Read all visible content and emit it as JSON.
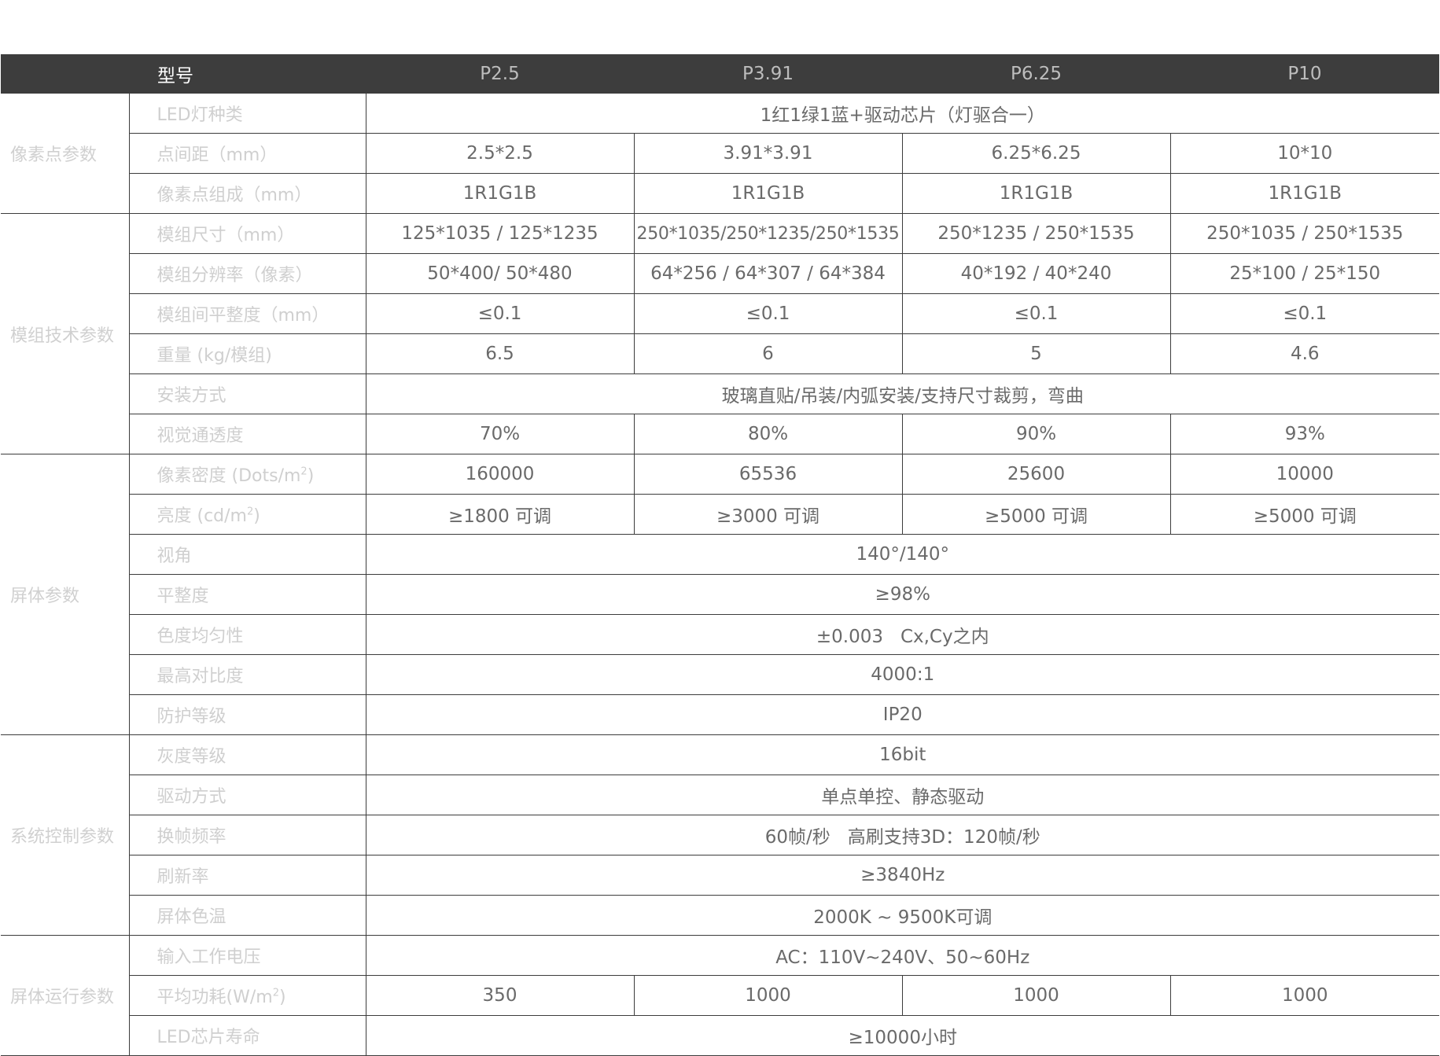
{
  "header": {
    "model_label": "型号",
    "models": [
      "P2.5",
      "P3.91",
      "P6.25",
      "P10"
    ]
  },
  "groups": {
    "pixel": "像素点参数",
    "module": "模组技术参数",
    "screen": "屏体参数",
    "system": "系统控制参数",
    "operation": "屏体运行参数"
  },
  "rows": {
    "led_type": {
      "label": "LED灯种类",
      "value": "1红1绿1蓝+驱动芯片（灯驱合一）"
    },
    "pitch": {
      "label": "点间距（mm）",
      "values": [
        "2.5*2.5",
        "3.91*3.91",
        "6.25*6.25",
        "10*10"
      ]
    },
    "pixel_composition": {
      "label": "像素点组成（mm）",
      "values": [
        "1R1G1B",
        "1R1G1B",
        "1R1G1B",
        "1R1G1B"
      ]
    },
    "module_size": {
      "label": "模组尺寸（mm）",
      "values": [
        "125*1035 / 125*1235",
        "250*1035/250*1235/250*1535",
        "250*1235 / 250*1535",
        "250*1035 / 250*1535"
      ]
    },
    "module_resolution": {
      "label": "模组分辨率（像素）",
      "values": [
        "50*400/ 50*480",
        "64*256 / 64*307 / 64*384",
        "40*192 / 40*240",
        "25*100 / 25*150"
      ]
    },
    "module_flatness": {
      "label": "模组间平整度（mm）",
      "values": [
        "≤0.1",
        "≤0.1",
        "≤0.1",
        "≤0.1"
      ]
    },
    "weight": {
      "label": "重量 (kg/模组)",
      "values": [
        "6.5",
        "6",
        "5",
        "4.6"
      ]
    },
    "installation": {
      "label": "安装方式",
      "value": "玻璃直贴/吊装/内弧安装/支持尺寸裁剪，弯曲"
    },
    "transparency": {
      "label": "视觉通透度",
      "values": [
        "70%",
        "80%",
        "90%",
        "93%"
      ]
    },
    "pixel_density": {
      "label": "像素密度 (Dots/m",
      "label_sup": "2",
      "label_end": ")",
      "values": [
        "160000",
        "65536",
        "25600",
        "10000"
      ]
    },
    "brightness": {
      "label": "亮度 (cd/m",
      "label_sup": "2",
      "label_end": ")",
      "values": [
        "≥1800 可调",
        "≥3000 可调",
        "≥5000 可调",
        "≥5000 可调"
      ]
    },
    "viewing_angle": {
      "label": "视角",
      "value": "140°/140°"
    },
    "flatness": {
      "label": "平整度",
      "value": "≥98%"
    },
    "chroma_uniformity": {
      "label": "色度均匀性",
      "value": "±0.003   Cx,Cy之内"
    },
    "contrast": {
      "label": "最高对比度",
      "value": "4000:1"
    },
    "protection": {
      "label": "防护等级",
      "value": "IP20"
    },
    "gray_level": {
      "label": "灰度等级",
      "value": "16bit"
    },
    "drive_mode": {
      "label": "驱动方式",
      "value": "单点单控、静态驱动"
    },
    "frame_rate": {
      "label": "换帧频率",
      "value": "60帧/秒   高刷支持3D：120帧/秒"
    },
    "refresh_rate": {
      "label": "刷新率",
      "value": "≥3840Hz"
    },
    "color_temp": {
      "label": "屏体色温",
      "value": "2000K ~ 9500K可调"
    },
    "input_voltage": {
      "label": "输入工作电压",
      "value": "AC：110V~240V、50~60Hz"
    },
    "avg_power": {
      "label": "平均功耗(W/m",
      "label_sup": "2",
      "label_end": ")",
      "values": [
        "350",
        "1000",
        "1000",
        "1000"
      ]
    },
    "led_life": {
      "label": "LED芯片寿命",
      "value": "≥10000小时"
    }
  }
}
